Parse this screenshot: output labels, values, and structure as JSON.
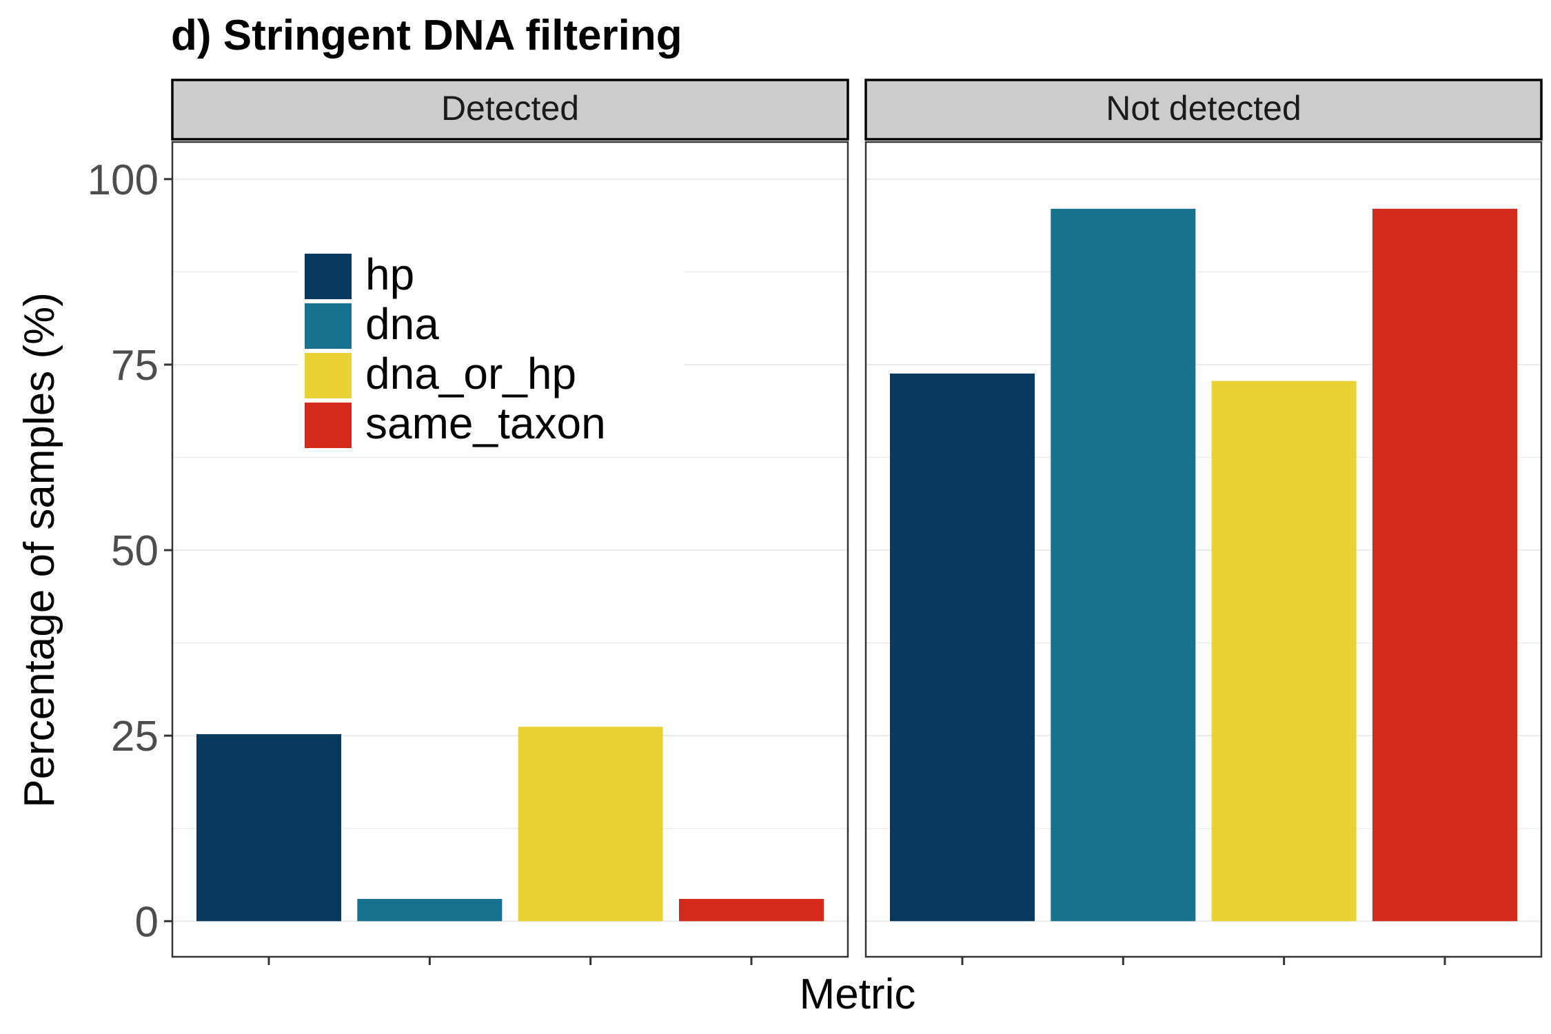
{
  "chart_data": {
    "type": "bar",
    "title": "d) Stringent DNA filtering",
    "xlabel": "Metric",
    "ylabel": "Percentage of samples (%)",
    "ylim": [
      -4.8,
      105
    ],
    "yticks": [
      0,
      25,
      50,
      75,
      100
    ],
    "grid": true,
    "facet_by": "detection status",
    "panels": [
      {
        "label": "Detected",
        "categories": [
          "hp",
          "dna",
          "dna_or_hp",
          "same_taxon"
        ],
        "values": [
          25.2,
          3.0,
          26.2,
          3.0
        ]
      },
      {
        "label": "Not detected",
        "categories": [
          "hp",
          "dna",
          "dna_or_hp",
          "same_taxon"
        ],
        "values": [
          73.8,
          96.0,
          72.8,
          96.0
        ]
      }
    ],
    "legend": {
      "placement": "inside-top-left",
      "entries": [
        {
          "name": "hp",
          "color": "#08395E"
        },
        {
          "name": "dna",
          "color": "#16728F"
        },
        {
          "name": "dna_or_hp",
          "color": "#E8D236"
        },
        {
          "name": "same_taxon",
          "color": "#D32A1C"
        }
      ]
    }
  }
}
